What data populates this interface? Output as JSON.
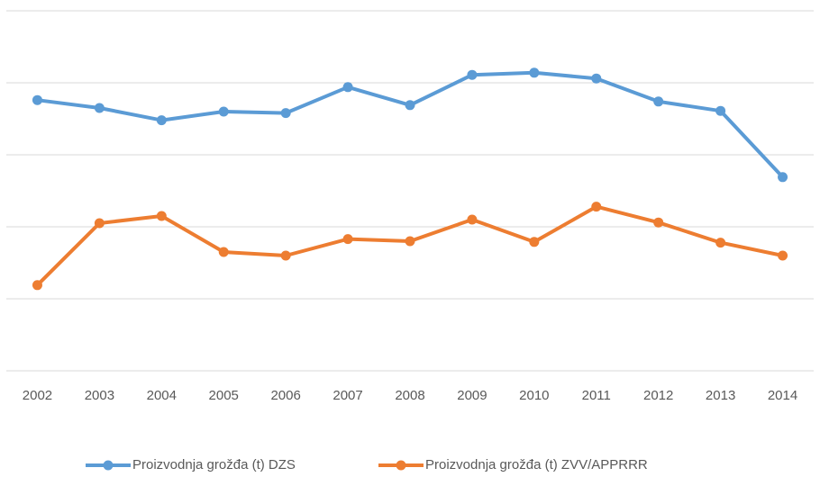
{
  "chart_data": {
    "type": "line",
    "categories": [
      "2002",
      "2003",
      "2004",
      "2005",
      "2006",
      "2007",
      "2008",
      "2009",
      "2010",
      "2011",
      "2012",
      "2013",
      "2014"
    ],
    "series": [
      {
        "name": "Proizvodnja grožđa (t) DZS",
        "color": "#5b9bd5",
        "values": [
          3.76,
          3.65,
          3.48,
          3.6,
          3.58,
          3.94,
          3.69,
          4.11,
          4.14,
          4.06,
          3.74,
          3.61,
          2.69
        ]
      },
      {
        "name": "Proizvodnja grožđa (t) ZVV/APPRRR",
        "color": "#ed7d31",
        "values": [
          1.19,
          2.05,
          2.15,
          1.65,
          1.6,
          1.83,
          1.8,
          2.1,
          1.79,
          2.28,
          2.06,
          1.78,
          1.6
        ]
      }
    ],
    "ylim": [
      0,
      5
    ],
    "yticks": [
      0,
      1,
      2,
      3,
      4,
      5
    ],
    "grid": true,
    "legend": "bottom"
  }
}
